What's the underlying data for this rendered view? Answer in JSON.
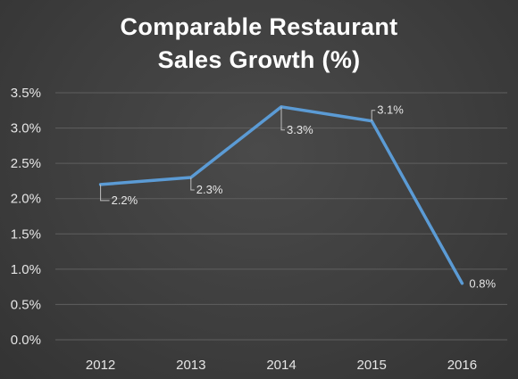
{
  "chart_data": {
    "type": "line",
    "title_lines": [
      "Comparable Restaurant",
      "Sales Growth (%)"
    ],
    "categories": [
      "2012",
      "2013",
      "2014",
      "2015",
      "2016"
    ],
    "series": [
      {
        "values": [
          2.2,
          2.3,
          3.3,
          3.1,
          0.8
        ],
        "data_labels": [
          "2.2%",
          "2.3%",
          "3.3%",
          "3.1%",
          "0.8%"
        ]
      }
    ],
    "yticks": [
      0.0,
      0.5,
      1.0,
      1.5,
      2.0,
      2.5,
      3.0,
      3.5
    ],
    "ytick_labels": [
      "0.0%",
      "0.5%",
      "1.0%",
      "1.5%",
      "2.0%",
      "2.5%",
      "3.0%",
      "3.5%"
    ],
    "ylim": [
      0,
      3.5
    ],
    "grid": true,
    "legend": "none",
    "colors": {
      "line": "#5b9bd5",
      "grid": "#5f5f5f",
      "text": "#e6e6e6",
      "title": "#ffffff",
      "leader": "#bfbfbf"
    }
  }
}
